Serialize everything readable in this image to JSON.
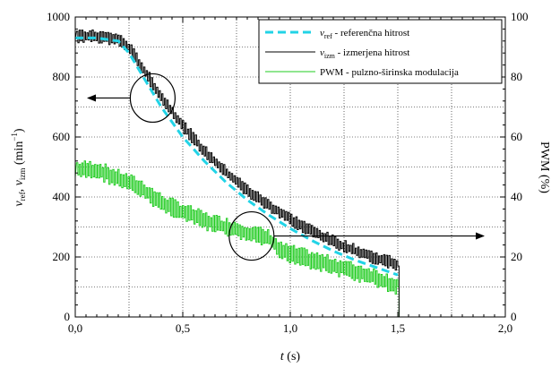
{
  "chart_data": {
    "type": "line",
    "xlabel": "t (s)",
    "ylabel_left": "v_ref, v_izm (min^-1)",
    "ylabel_right": "PWM (%)",
    "xlim": [
      0,
      2.0
    ],
    "ylim_left": [
      0,
      1000
    ],
    "ylim_right": [
      0,
      100
    ],
    "x_ticks": [
      0,
      0.5,
      1.0,
      1.5,
      2.0
    ],
    "x_tick_labels": [
      "0,0",
      "0,5",
      "1,0",
      "1,5",
      "2,0"
    ],
    "y_left_ticks": [
      0,
      200,
      400,
      600,
      800,
      1000
    ],
    "y_left_tick_labels": [
      "0",
      "200",
      "400",
      "600",
      "800",
      "1000"
    ],
    "y_right_ticks": [
      0,
      20,
      40,
      60,
      80,
      100
    ],
    "y_right_tick_labels": [
      "0",
      "20",
      "40",
      "60",
      "80",
      "100"
    ],
    "grid": true,
    "legend_placement": "top-right",
    "series": [
      {
        "name": "v_ref - referenčna hitrost",
        "legend_main": "v",
        "legend_sub": "ref",
        "legend_rest": " - referenčna hitrost",
        "color": "#22d3e6",
        "style": "dashed",
        "axis": "left",
        "x": [
          0.0,
          0.1,
          0.2,
          0.25,
          0.3,
          0.35,
          0.4,
          0.5,
          0.6,
          0.7,
          0.8,
          0.9,
          1.0,
          1.1,
          1.2,
          1.3,
          1.4,
          1.5
        ],
        "y": [
          930,
          930,
          920,
          880,
          820,
          760,
          700,
          600,
          520,
          450,
          390,
          340,
          295,
          255,
          220,
          190,
          165,
          140
        ]
      },
      {
        "name": "v_izm - izmerjena hitrost",
        "legend_main": "v",
        "legend_sub": "izm",
        "legend_rest": " - izmerjena hitrost",
        "color": "#000000",
        "style": "solid",
        "axis": "left",
        "noisy": true,
        "x": [
          0.0,
          0.1,
          0.2,
          0.25,
          0.3,
          0.35,
          0.4,
          0.5,
          0.6,
          0.7,
          0.8,
          0.9,
          1.0,
          1.1,
          1.2,
          1.3,
          1.4,
          1.48,
          1.5,
          1.501,
          2.0
        ],
        "y": [
          935,
          935,
          925,
          895,
          840,
          785,
          730,
          635,
          550,
          480,
          420,
          370,
          325,
          285,
          250,
          220,
          195,
          180,
          170,
          0,
          0
        ]
      },
      {
        "name": "PWM - pulzno-širinska modulacija",
        "legend_main": "PWM - pulzno-širinska modulacija",
        "legend_sub": "",
        "legend_rest": "",
        "color": "#22cc22",
        "style": "solid",
        "axis": "right",
        "noisy": true,
        "x": [
          0.0,
          0.1,
          0.2,
          0.3,
          0.4,
          0.5,
          0.6,
          0.7,
          0.8,
          0.9,
          0.95,
          1.0,
          1.1,
          1.2,
          1.3,
          1.4,
          1.5,
          1.501,
          2.0
        ],
        "y": [
          49,
          49,
          46,
          43,
          38,
          35,
          32,
          30,
          28,
          26,
          22,
          21,
          19,
          17,
          15,
          13,
          10,
          0,
          0
        ]
      }
    ],
    "annotations": [
      {
        "type": "circle",
        "x": 0.36,
        "y_left": 730,
        "points": "left"
      },
      {
        "type": "circle",
        "x": 0.82,
        "y_left": 270,
        "points": "right"
      }
    ]
  }
}
